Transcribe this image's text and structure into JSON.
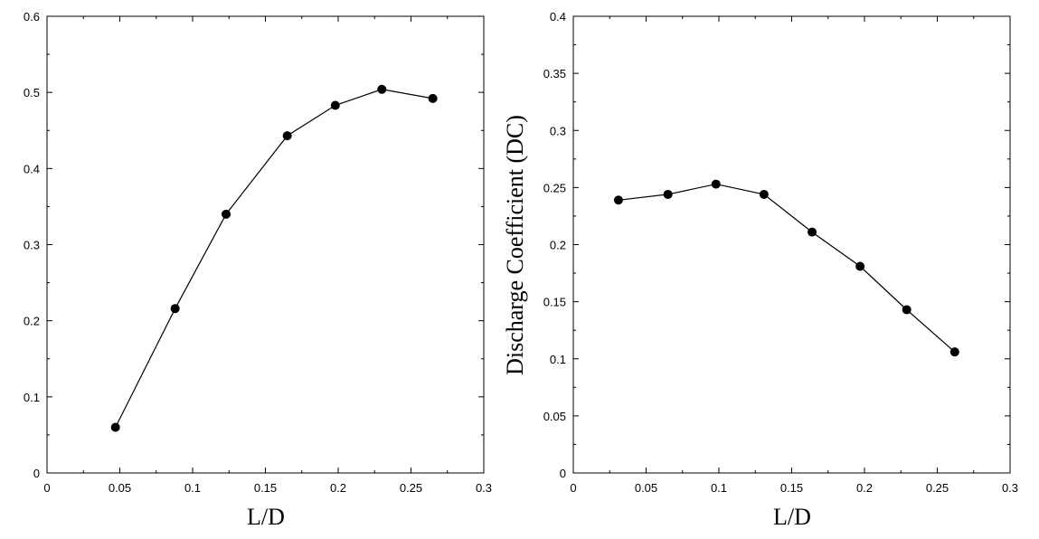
{
  "chart_data": [
    {
      "type": "line",
      "xlabel": "L/D",
      "ylabel": "",
      "xlim": [
        0,
        0.3
      ],
      "ylim": [
        0,
        0.6
      ],
      "x_ticks": [
        "0",
        "0.05",
        "0.1",
        "0.15",
        "0.2",
        "0.25",
        "0.3"
      ],
      "y_ticks": [
        "0",
        "0.1",
        "0.2",
        "0.3",
        "0.4",
        "0.5",
        "0.6"
      ],
      "grid": false,
      "marker": "filled-circle",
      "color": "#000000",
      "series": [
        {
          "x": [
            0.047,
            0.088,
            0.123,
            0.165,
            0.198,
            0.23,
            0.265
          ],
          "y": [
            0.06,
            0.216,
            0.34,
            0.443,
            0.483,
            0.504,
            0.492
          ]
        }
      ]
    },
    {
      "type": "line",
      "xlabel": "L/D",
      "ylabel": "Discharge Coefficient (DC)",
      "xlim": [
        0,
        0.3
      ],
      "ylim": [
        0,
        0.4
      ],
      "x_ticks": [
        "0",
        "0.05",
        "0.1",
        "0.15",
        "0.2",
        "0.25",
        "0.3"
      ],
      "y_ticks": [
        "0",
        "0.05",
        "0.1",
        "0.15",
        "0.2",
        "0.25",
        "0.3",
        "0.35",
        "0.4"
      ],
      "grid": false,
      "marker": "filled-circle",
      "color": "#000000",
      "series": [
        {
          "x": [
            0.031,
            0.065,
            0.098,
            0.131,
            0.164,
            0.197,
            0.229,
            0.262
          ],
          "y": [
            0.239,
            0.244,
            0.253,
            0.244,
            0.211,
            0.181,
            0.143,
            0.106
          ]
        }
      ]
    }
  ]
}
